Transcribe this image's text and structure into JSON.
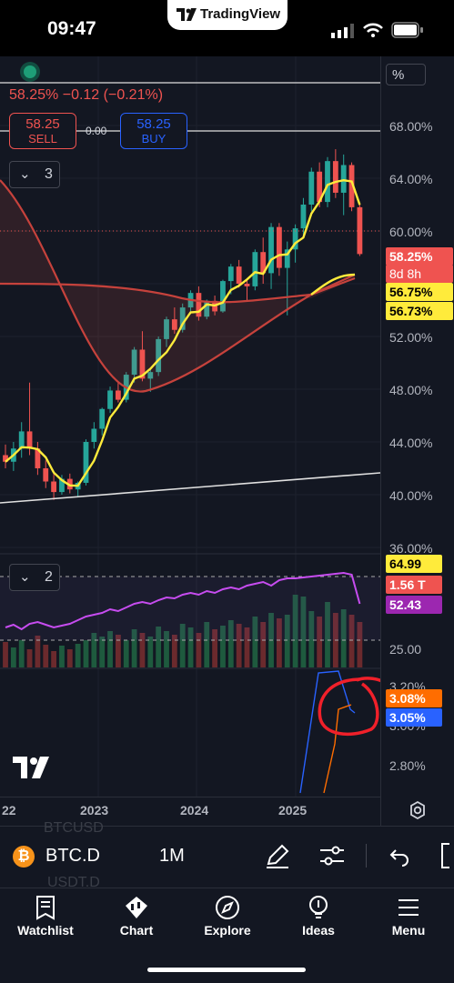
{
  "status": {
    "time": "09:47"
  },
  "app": {
    "name": "TradingView"
  },
  "header": {
    "pct_line": "58.25%",
    "change": "−0.12 (−0.21%)",
    "sell_price": "58.25",
    "sell_label": "SELL",
    "spread": "0.00",
    "buy_price": "58.25",
    "buy_label": "BUY",
    "scale_unit": "%",
    "indicator_count_main": "3",
    "indicator_count_sub": "2"
  },
  "price_axis": {
    "ticks": [
      "68.00%",
      "64.00%",
      "60.00%",
      "52.00%",
      "48.00%",
      "44.00%",
      "40.00%",
      "36.00%"
    ],
    "badges": {
      "last": "58.25%",
      "countdown": "8d 8h",
      "ma1": "56.75%",
      "ma2": "56.73%"
    }
  },
  "sub_axis": {
    "tick": "25.00",
    "badges": {
      "a": "64.99",
      "b": "1.56 T",
      "c": "52.43"
    }
  },
  "third_axis": {
    "ticks": [
      "3.20%",
      "3.00%",
      "2.80%"
    ],
    "badges": {
      "orange": "3.08%",
      "blue": "3.05%"
    }
  },
  "time_axis": [
    "22",
    "2023",
    "2024",
    "2025"
  ],
  "symbol": {
    "ticker": "BTC.D",
    "interval": "1M",
    "ghost1": "BTCUSD",
    "ghost2": "USDT.D"
  },
  "nav": [
    "Watchlist",
    "Chart",
    "Explore",
    "Ideas",
    "Menu"
  ],
  "colors": {
    "up": "#26a69a",
    "down": "#ef5350",
    "ma": "#ffeb3b",
    "bg": "#131722"
  },
  "chart_data": {
    "type": "candlestick",
    "interval": "1M",
    "symbol": "BTC.D",
    "y_unit": "%",
    "y_ticks": [
      "68.00%",
      "64.00%",
      "60.00%",
      "52.00%",
      "48.00%",
      "44.00%",
      "40.00%",
      "36.00%"
    ],
    "x_ticks": [
      "22",
      "2023",
      "2024",
      "2025"
    ],
    "last_price": 58.25,
    "ma_values": [
      56.75,
      56.73
    ],
    "candles": [
      [
        43,
        43.8,
        42,
        42.5
      ],
      [
        42.5,
        44,
        41.8,
        43.5
      ],
      [
        43.5,
        45.5,
        42.8,
        44.8
      ],
      [
        44.8,
        48.5,
        43,
        43.5
      ],
      [
        43.5,
        44,
        41.5,
        42
      ],
      [
        42,
        42.6,
        40.5,
        41
      ],
      [
        41,
        41.8,
        39.6,
        40.2
      ],
      [
        40.2,
        41.5,
        40,
        41.2
      ],
      [
        41.2,
        41.6,
        40.1,
        40.4
      ],
      [
        40.4,
        41,
        39.8,
        40.9
      ],
      [
        40.9,
        44.2,
        40.7,
        44
      ],
      [
        44,
        45.5,
        43.5,
        45
      ],
      [
        45,
        46.6,
        44.5,
        46.5
      ],
      [
        46.5,
        48.2,
        46.2,
        47.9
      ],
      [
        47.9,
        48.6,
        47,
        47.2
      ],
      [
        47.2,
        49.3,
        47,
        49.1
      ],
      [
        49.1,
        51.2,
        48.5,
        51
      ],
      [
        51,
        52.4,
        48.6,
        48.8
      ],
      [
        48.8,
        49.5,
        47.8,
        49.3
      ],
      [
        49.3,
        52,
        49,
        51.8
      ],
      [
        51.8,
        53.5,
        51.2,
        53.3
      ],
      [
        53.3,
        54.2,
        52.2,
        52.5
      ],
      [
        52.5,
        54.5,
        52.3,
        54.2
      ],
      [
        54.2,
        55.5,
        53.7,
        55.3
      ],
      [
        55.3,
        55.8,
        53.2,
        53.5
      ],
      [
        53.5,
        54.8,
        53.3,
        54.7
      ],
      [
        54.7,
        55.1,
        53.6,
        53.9
      ],
      [
        53.9,
        56.3,
        53.8,
        56.2
      ],
      [
        56.2,
        57.5,
        55.2,
        57.3
      ],
      [
        57.3,
        57.8,
        55.7,
        56
      ],
      [
        56,
        56.4,
        54.7,
        55.8
      ],
      [
        55.8,
        58.6,
        55.5,
        58.4
      ],
      [
        58.4,
        59.5,
        56,
        56.8
      ],
      [
        56.8,
        60.6,
        55.6,
        60.3
      ],
      [
        60.3,
        60.6,
        56.6,
        57.2
      ],
      [
        57.2,
        59.2,
        53.6,
        58.6
      ],
      [
        58.6,
        60.5,
        57.6,
        60.2
      ],
      [
        60.2,
        62.5,
        59.5,
        62
      ],
      [
        62,
        64.8,
        61.5,
        64.5
      ],
      [
        64.5,
        65.2,
        61.8,
        62.2
      ],
      [
        62.2,
        65.6,
        61.8,
        65.3
      ],
      [
        65.3,
        66.2,
        62.5,
        62.9
      ],
      [
        62.9,
        65.8,
        61.2,
        65
      ],
      [
        65,
        65.2,
        61.5,
        61.8
      ],
      [
        61.8,
        62,
        58.1,
        58.25
      ]
    ]
  }
}
